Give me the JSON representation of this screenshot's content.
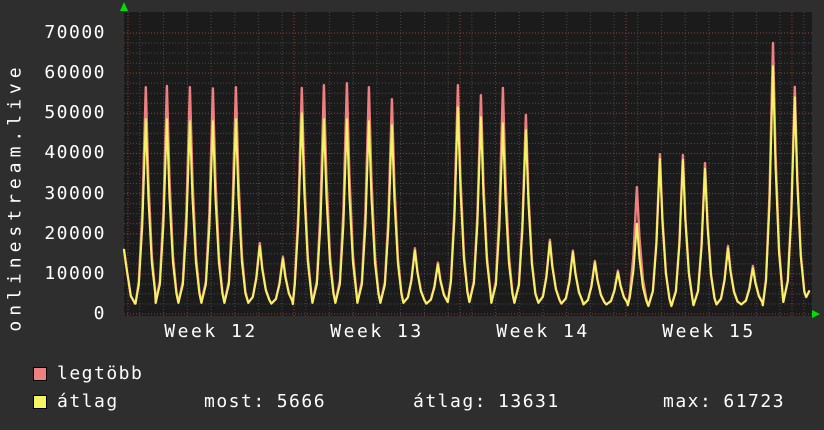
{
  "title_vertical": "onlinestream.live",
  "colors": {
    "background": "#2e2e2e",
    "plot_background": "#1b1b1b",
    "grid_minor": "#4a4a4a",
    "grid_major": "#993c3c",
    "series_legtobb": "#f08080",
    "series_atlag": "#f4f462",
    "axis_arrow": "#00dd00",
    "text": "#ffffff"
  },
  "legend": [
    {
      "label": "legtöbb",
      "color": "#f08080"
    },
    {
      "label": "átlag",
      "color": "#f4f462"
    }
  ],
  "footer": {
    "stats": [
      {
        "label": "most:",
        "value": "5666"
      },
      {
        "label": "átlag:",
        "value": "13631"
      },
      {
        "label": "max:",
        "value": "61723"
      }
    ]
  },
  "chart_data": {
    "type": "line",
    "title": "onlinestream.live",
    "grid": true,
    "legend_position": "bottom-left",
    "x_axis": {
      "unit": "days since start of Week 12",
      "tick_labels": [
        "Week 12",
        "Week 13",
        "Week 14",
        "Week 15"
      ],
      "week_boundaries_days": [
        0,
        7,
        14,
        21,
        28
      ],
      "range_days": [
        -0.17,
        28.72
      ]
    },
    "y_axis": {
      "min": 0,
      "max": 70000,
      "major_step": 10000,
      "minor_step": 2500,
      "tick_labels": [
        "0",
        "10000",
        "20000",
        "30000",
        "40000",
        "50000",
        "60000",
        "70000"
      ]
    },
    "series_names": [
      "legtöbb",
      "átlag"
    ],
    "lead_in_points": [
      [
        -0.17,
        16000
      ],
      [
        -0.05,
        11000
      ],
      [
        0.12,
        4500
      ],
      [
        0.3,
        2600
      ]
    ],
    "daily_spikes": [
      [
        0.75,
        56500,
        48500,
        2600
      ],
      [
        1.64,
        56800,
        48500,
        2800
      ],
      [
        2.61,
        56500,
        48000,
        2800
      ],
      [
        3.58,
        56200,
        48000,
        2800
      ],
      [
        4.55,
        56500,
        48500,
        2800
      ],
      [
        5.56,
        17700,
        17000,
        2800
      ],
      [
        6.53,
        14300,
        13800,
        2600
      ],
      [
        7.33,
        56300,
        50000,
        2500
      ],
      [
        8.26,
        57000,
        48500,
        2800
      ],
      [
        9.23,
        57500,
        48500,
        2800
      ],
      [
        10.16,
        56500,
        48000,
        2800
      ],
      [
        11.13,
        53500,
        47000,
        2800
      ],
      [
        12.1,
        16400,
        15800,
        2800
      ],
      [
        13.07,
        12800,
        12300,
        2600
      ],
      [
        13.91,
        57000,
        51500,
        3000
      ],
      [
        14.88,
        54500,
        49000,
        3000
      ],
      [
        15.81,
        56300,
        47500,
        2800
      ],
      [
        16.78,
        49600,
        45800,
        2800
      ],
      [
        17.79,
        18500,
        17900,
        2800
      ],
      [
        18.76,
        15800,
        15400,
        2600
      ],
      [
        19.69,
        13200,
        12800,
        2400
      ],
      [
        20.66,
        10800,
        10400,
        2400
      ],
      [
        21.46,
        31600,
        22500,
        2200
      ],
      [
        22.43,
        39800,
        38600,
        2000
      ],
      [
        23.4,
        39600,
        38400,
        2000
      ],
      [
        24.33,
        37600,
        36200,
        2200
      ],
      [
        25.3,
        17000,
        16400,
        2400
      ],
      [
        26.35,
        12000,
        11400,
        2400
      ],
      [
        27.2,
        67500,
        61700,
        2200
      ],
      [
        28.12,
        56600,
        54000,
        3000
      ]
    ],
    "tail_points": [
      [
        28.6,
        4200
      ],
      [
        28.72,
        5666
      ]
    ],
    "summary_stats": {
      "most": 5666,
      "atlag": 13631,
      "max": 61723
    }
  }
}
